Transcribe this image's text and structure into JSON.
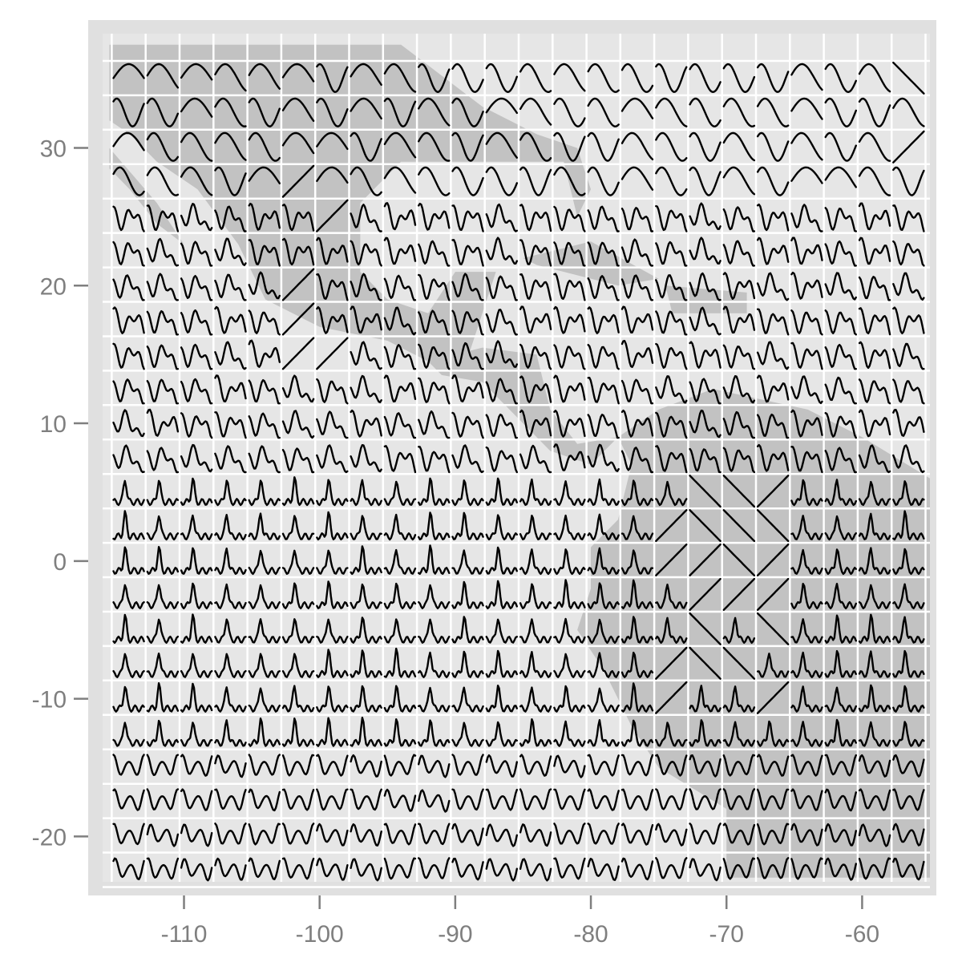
{
  "chart_data": {
    "type": "line",
    "description_kind": "glyph map: small line glyph per grid cell over a map",
    "x_axis": {
      "ticks": [
        -110,
        -100,
        -90,
        -80,
        -70,
        -60
      ],
      "tick_labels": [
        "-110",
        "-100",
        "-90",
        "-80",
        "-70",
        "-60"
      ],
      "range": [
        -116,
        -55
      ]
    },
    "y_axis": {
      "ticks": [
        -20,
        -10,
        0,
        10,
        20,
        30
      ],
      "tick_labels": [
        "-20",
        "-10",
        "0",
        "10",
        "20",
        "30"
      ],
      "range": [
        -23.3,
        38.3
      ]
    },
    "grid": {
      "cols": 24,
      "rows": 24,
      "lon_start": -115.2,
      "lon_step": 2.5,
      "lat_start": 36.2,
      "lat_step": -2.5,
      "cell_width_deg": 2.25,
      "cell_height_deg": 2.25
    },
    "regions": {
      "pacific_rows_below_lat_10_cols_lt_15": "multi-peak",
      "north_band": "single-hump",
      "diagonal_land": "straight-line"
    },
    "colors": {
      "panel_outer": "#e0e0e0",
      "panel_inner": "#e6e6e6",
      "land": "#c2c2c2",
      "grid_line": "#ffffff",
      "glyph": "#000000",
      "axis_text": "#7f7f7f"
    }
  }
}
